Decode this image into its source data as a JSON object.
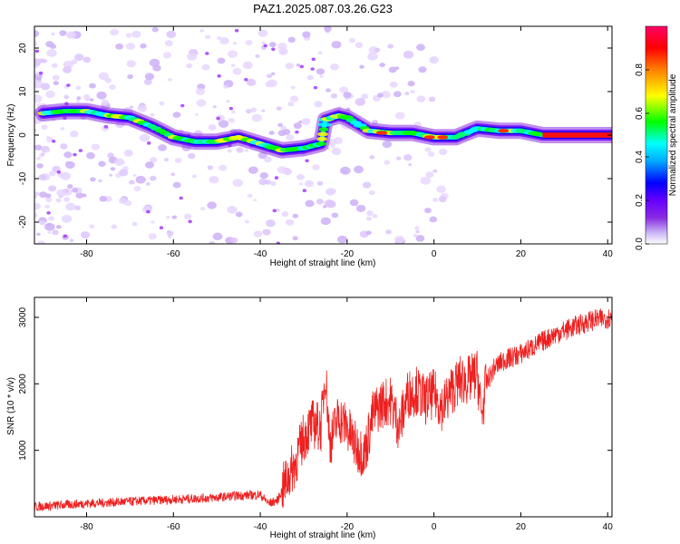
{
  "title": "PAZ1.2025.087.03.26.G23",
  "chart_data": [
    {
      "type": "heatmap",
      "xlabel": "Height of straight line (km)",
      "ylabel": "Frequency (Hz)",
      "xlim": [
        -92,
        41
      ],
      "ylim": [
        -25,
        25
      ],
      "xticks": [
        -80,
        -60,
        -40,
        -20,
        0,
        20,
        40
      ],
      "yticks": [
        -20,
        -10,
        0,
        10,
        20
      ],
      "colorbar": {
        "label": "Normalized spectral amplitude",
        "range": [
          0.0,
          1.0
        ],
        "ticks": [
          "0.0",
          "0.2",
          "0.4",
          "0.6",
          "0.8"
        ],
        "colormap": [
          "#ffffff",
          "#b2a0f0",
          "#7a00ff",
          "#0000ff",
          "#00ffff",
          "#00ff00",
          "#ffff00",
          "#ff8000",
          "#ff0000",
          "#ff0066"
        ]
      },
      "ridge": {
        "x": [
          -90,
          -85,
          -80,
          -75,
          -70,
          -65,
          -60,
          -55,
          -50,
          -45,
          -40,
          -35,
          -30,
          -26,
          -25,
          -22,
          -20,
          -15,
          -10,
          -5,
          0,
          5,
          10,
          15,
          20,
          25,
          30,
          35,
          41
        ],
        "y": [
          5,
          5.5,
          5.5,
          4.5,
          4,
          2,
          -0.5,
          -1.5,
          -1.5,
          -0.5,
          -2,
          -3.5,
          -3,
          -2,
          3.5,
          4.5,
          4,
          1,
          0.5,
          0.5,
          -0.5,
          -0.5,
          1.5,
          1,
          1,
          0,
          0,
          0,
          0
        ]
      }
    },
    {
      "type": "line",
      "xlabel": "Height of straight line (km)",
      "ylabel": "SNR (10 * v/v)",
      "xlim": [
        -92,
        41
      ],
      "ylim": [
        0,
        3300
      ],
      "xticks": [
        -80,
        -60,
        -40,
        -20,
        0,
        20,
        40
      ],
      "yticks": [
        1000,
        2000,
        3000
      ],
      "color": "#ee2020",
      "series": [
        {
          "x": [
            -92,
            -85,
            -80,
            -70,
            -60,
            -50,
            -45,
            -40,
            -38,
            -36,
            -34,
            -32,
            -30,
            -28,
            -26,
            -25,
            -24,
            -22,
            -20,
            -18,
            -16,
            -14,
            -12,
            -10,
            -8,
            -6,
            -4,
            -2,
            0,
            2,
            4,
            6,
            8,
            10,
            11,
            12,
            14,
            16,
            18,
            20,
            24,
            28,
            32,
            36,
            41
          ],
          "y": [
            150,
            180,
            200,
            230,
            260,
            290,
            320,
            330,
            200,
            250,
            550,
            800,
            1200,
            1400,
            1350,
            2200,
            1100,
            1500,
            1350,
            1050,
            950,
            1550,
            1700,
            1750,
            1350,
            1850,
            1900,
            1750,
            1850,
            1650,
            1900,
            2050,
            2050,
            2150,
            1500,
            2000,
            2250,
            2350,
            2400,
            2450,
            2600,
            2750,
            2850,
            2950,
            3000
          ]
        }
      ]
    }
  ]
}
